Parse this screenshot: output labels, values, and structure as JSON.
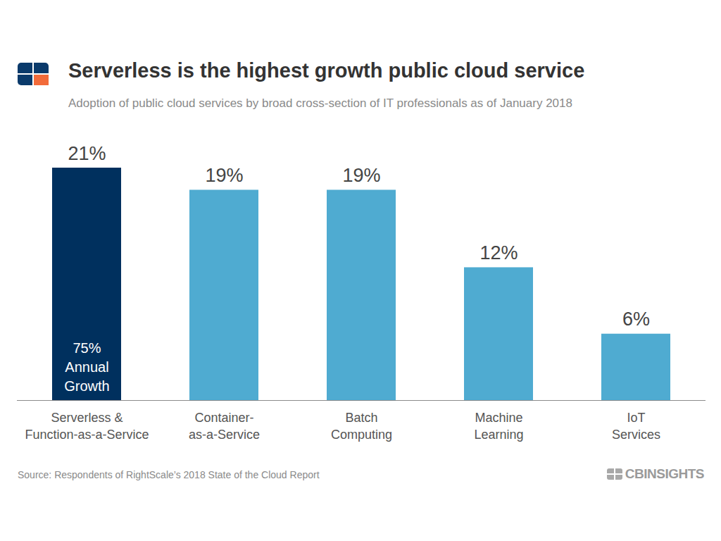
{
  "chart_data": {
    "type": "bar",
    "title": "Serverless is the highest growth public cloud service",
    "subtitle": "Adoption of public cloud services by broad cross-section of IT professionals as of January 2018",
    "categories": [
      "Serverless &\nFunction-as-a-Service",
      "Container-\nas-a-Service",
      "Batch\nComputing",
      "Machine\nLearning",
      "IoT\nServices"
    ],
    "values": [
      21,
      19,
      19,
      12,
      6
    ],
    "value_labels": [
      "21%",
      "19%",
      "19%",
      "12%",
      "6%"
    ],
    "data_labels": true,
    "colors": [
      "#00305e",
      "#4fabd1",
      "#4fabd1",
      "#4fabd1",
      "#4fabd1"
    ],
    "ylim": [
      0,
      21
    ],
    "tick_labels": "x",
    "grid": false,
    "annotations": [
      {
        "category": "Serverless &\nFunction-as-a-Service",
        "text": "75%\nAnnual\nGrowth"
      }
    ],
    "source": "Source: Respondents of RightScale’s 2018 State of the Cloud Report",
    "brand": "CBINSIGHTS"
  }
}
